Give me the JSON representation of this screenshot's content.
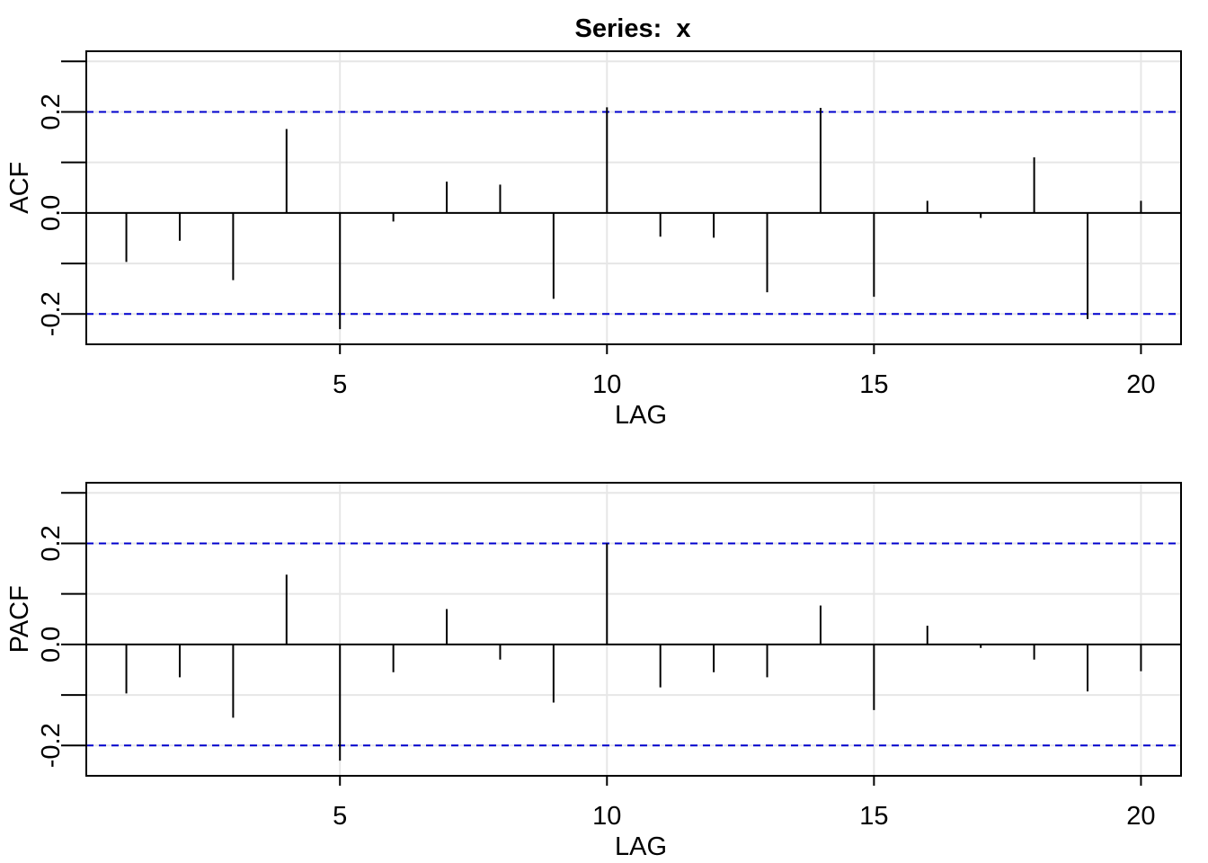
{
  "figure": {
    "title": "Series:  x",
    "background": "#ffffff"
  },
  "chart_data": [
    {
      "type": "bar",
      "ylabel": "ACF",
      "xlabel": "LAG",
      "xlim": [
        0.25,
        20.75
      ],
      "ylim": [
        -0.26,
        0.32
      ],
      "xticks": [
        5,
        10,
        15,
        20
      ],
      "yticks": [
        -0.2,
        0.0,
        0.2
      ],
      "ytick_labels": [
        "-0.2",
        "0.0",
        "0.2"
      ],
      "grid": true,
      "grid_x": [
        5,
        10,
        15,
        20
      ],
      "grid_y": [
        -0.3,
        -0.2,
        -0.1,
        0.0,
        0.1,
        0.2,
        0.3
      ],
      "minor_ticks_y": [
        -0.1,
        0.1,
        0.3
      ],
      "confidence_bound": 0.2,
      "colors": {
        "bars": "#000000",
        "bounds": "#0000CD",
        "grid": "#e6e6e6"
      },
      "lags": [
        1,
        2,
        3,
        4,
        5,
        6,
        7,
        8,
        9,
        10,
        11,
        12,
        13,
        14,
        15,
        16,
        17,
        18,
        19,
        20
      ],
      "values": [
        -0.097,
        -0.055,
        -0.133,
        0.166,
        -0.23,
        -0.017,
        0.062,
        0.056,
        -0.17,
        0.209,
        -0.047,
        -0.049,
        -0.157,
        0.208,
        -0.166,
        0.024,
        -0.01,
        0.11,
        -0.21,
        0.024
      ]
    },
    {
      "type": "bar",
      "ylabel": "PACF",
      "xlabel": "LAG",
      "xlim": [
        0.25,
        20.75
      ],
      "ylim": [
        -0.26,
        0.32
      ],
      "xticks": [
        5,
        10,
        15,
        20
      ],
      "yticks": [
        -0.2,
        0.0,
        0.2
      ],
      "ytick_labels": [
        "-0.2",
        "0.0",
        "0.2"
      ],
      "grid": true,
      "grid_x": [
        5,
        10,
        15,
        20
      ],
      "grid_y": [
        -0.3,
        -0.2,
        -0.1,
        0.0,
        0.1,
        0.2,
        0.3
      ],
      "minor_ticks_y": [
        -0.1,
        0.1,
        0.3
      ],
      "confidence_bound": 0.2,
      "colors": {
        "bars": "#000000",
        "bounds": "#0000CD",
        "grid": "#e6e6e6"
      },
      "lags": [
        1,
        2,
        3,
        4,
        5,
        6,
        7,
        8,
        9,
        10,
        11,
        12,
        13,
        14,
        15,
        16,
        17,
        18,
        19,
        20
      ],
      "values": [
        -0.097,
        -0.065,
        -0.145,
        0.138,
        -0.23,
        -0.055,
        0.07,
        -0.03,
        -0.115,
        0.2,
        -0.085,
        -0.055,
        -0.065,
        0.077,
        -0.13,
        0.037,
        -0.007,
        -0.03,
        -0.093,
        -0.053
      ]
    }
  ]
}
